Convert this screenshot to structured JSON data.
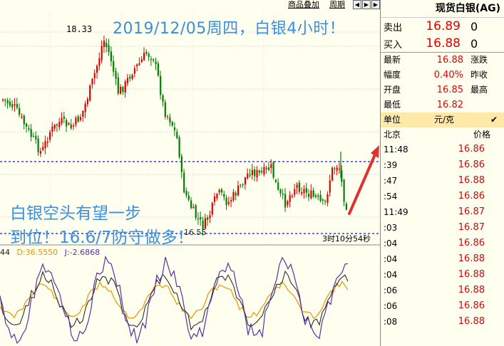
{
  "toolbar": {
    "overlay_label": "商品叠加",
    "period_label": "周期"
  },
  "chart": {
    "peak_label": "18.33",
    "low_label": "16.55",
    "time_label": "3时10分54秒",
    "headline": "2019/12/05周四，白银4小时！",
    "annotation_line1": "白银空头有望一步",
    "annotation_line2": "到位！16.6/7防守做多！",
    "kdj_prefix": "44",
    "kdj_d": "D:36.5550",
    "kdj_j": "J:-2.6868",
    "colors": {
      "up": "#e00000",
      "down": "#008000",
      "k": "#1a1a1a",
      "d": "#e69500",
      "j": "#5b2fa8",
      "annotation": "#3a8fe0",
      "arrow": "#e03030",
      "dash": "#1a1aaa"
    }
  },
  "info": {
    "title": "现货白银(AG)",
    "sell_label": "卖出",
    "sell_price": "16.89",
    "sell_vol": "0",
    "buy_label": "买入",
    "buy_price": "16.88",
    "buy_vol": "0",
    "stats": [
      {
        "label": "最新",
        "value": "16.88",
        "label2": "涨跌"
      },
      {
        "label": "幅度",
        "value": "0.40%",
        "label2": "昨收"
      },
      {
        "label": "开盘",
        "value": "16.85",
        "label2": "最高"
      },
      {
        "label": "最低",
        "value": "16.82",
        "label2": ""
      }
    ],
    "unit_label": "单位",
    "unit_value": "元/克",
    "ticks_header_left": "北京",
    "ticks_header_right": "价格",
    "ticks": [
      {
        "time": "11:48",
        "price": "16.86"
      },
      {
        "time": ":39",
        "price": "16.86"
      },
      {
        "time": ":47",
        "price": "16.88"
      },
      {
        "time": ":54",
        "price": "16.86"
      },
      {
        "time": "11:49",
        "price": "16.87"
      },
      {
        "time": ":03",
        "price": "16.87"
      },
      {
        "time": ":04",
        "price": "16.86"
      },
      {
        "time": ":04",
        "price": "16.88"
      },
      {
        "time": ":04",
        "price": "16.88"
      },
      {
        "time": ":06",
        "price": "16.88"
      },
      {
        "time": ":06",
        "price": "16.86"
      },
      {
        "time": ":08",
        "price": "16.88"
      }
    ]
  }
}
